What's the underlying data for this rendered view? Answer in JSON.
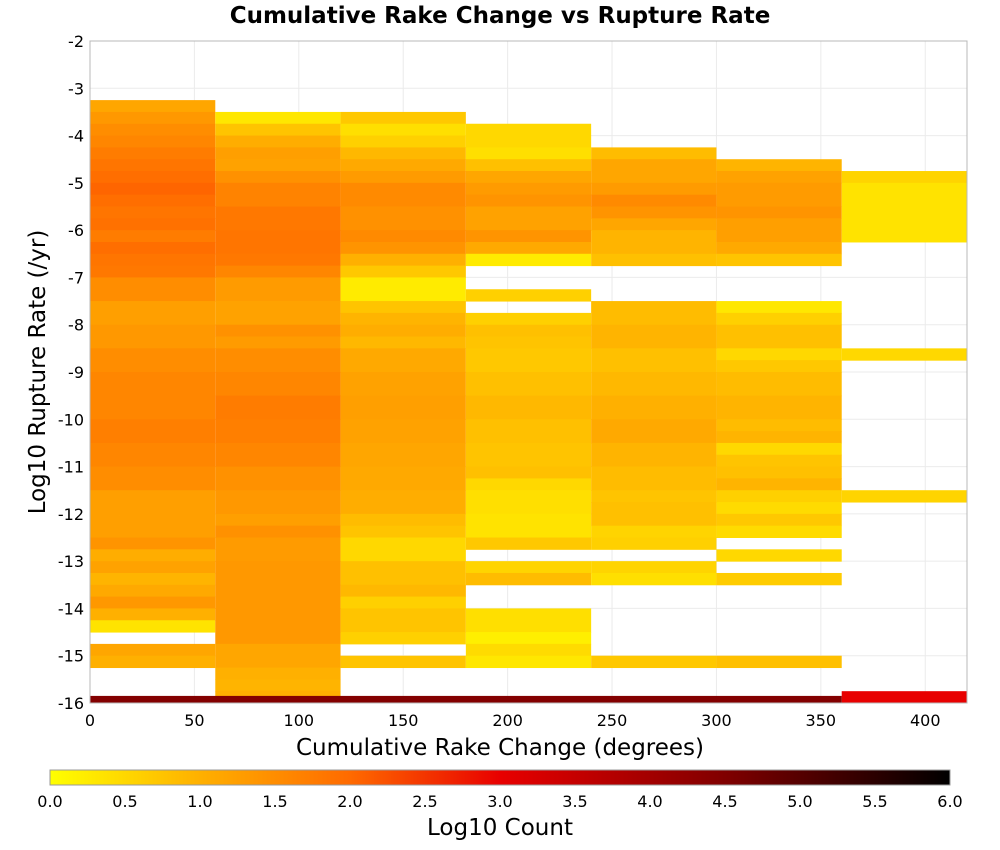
{
  "chart_data": {
    "type": "heatmap",
    "title": "Cumulative Rake Change vs Rupture Rate",
    "xlabel": "Cumulative Rake Change (degrees)",
    "ylabel": "Log10 Rupture Rate (/yr)",
    "xlim": [
      0,
      420
    ],
    "ylim": [
      -16,
      -2
    ],
    "x_ticks": [
      "0",
      "50",
      "100",
      "150",
      "200",
      "250",
      "300",
      "350",
      "400"
    ],
    "y_ticks": [
      "-2",
      "-3",
      "-4",
      "-5",
      "-6",
      "-7",
      "-8",
      "-9",
      "-10",
      "-11",
      "-12",
      "-13",
      "-14",
      "-15",
      "-16"
    ],
    "x_bin_width": 60,
    "y_bin_height": 0.25,
    "colorbar": {
      "label": "Log10 Count",
      "range": [
        0,
        6
      ],
      "ticks": [
        "0.0",
        "0.5",
        "1.0",
        "1.5",
        "2.0",
        "2.5",
        "3.0",
        "3.5",
        "4.0",
        "4.5",
        "5.0",
        "5.5",
        "6.0"
      ],
      "stops": [
        {
          "value": 0.0,
          "color": "#ffff00"
        },
        {
          "value": 1.0,
          "color": "#ffb000"
        },
        {
          "value": 2.0,
          "color": "#ff6a00"
        },
        {
          "value": 3.0,
          "color": "#e80000"
        },
        {
          "value": 4.5,
          "color": "#800000"
        },
        {
          "value": 6.0,
          "color": "#000000"
        }
      ]
    },
    "columns": [
      {
        "x_start": 0,
        "runs": [
          [
            -3.25,
            -3.5,
            1.15
          ],
          [
            -3.5,
            -3.75,
            1.35
          ],
          [
            -3.75,
            -4.0,
            1.5
          ],
          [
            -4.0,
            -4.25,
            1.6
          ],
          [
            -4.25,
            -4.5,
            1.75
          ],
          [
            -4.5,
            -4.75,
            1.85
          ],
          [
            -4.75,
            -5.0,
            1.95
          ],
          [
            -5.0,
            -5.25,
            2.05
          ],
          [
            -5.25,
            -5.5,
            1.95
          ],
          [
            -5.5,
            -5.75,
            1.85
          ],
          [
            -5.75,
            -6.0,
            1.9
          ],
          [
            -6.0,
            -6.25,
            1.75
          ],
          [
            -6.25,
            -6.5,
            1.95
          ],
          [
            -6.5,
            -6.75,
            1.85
          ],
          [
            -6.75,
            -7.0,
            1.8
          ],
          [
            -7.0,
            -7.5,
            1.5
          ],
          [
            -7.5,
            -8.0,
            1.25
          ],
          [
            -8.0,
            -8.5,
            1.35
          ],
          [
            -8.5,
            -9.0,
            1.5
          ],
          [
            -9.0,
            -10.0,
            1.6
          ],
          [
            -10.0,
            -10.5,
            1.7
          ],
          [
            -10.5,
            -11.0,
            1.6
          ],
          [
            -11.0,
            -11.5,
            1.5
          ],
          [
            -11.5,
            -12.5,
            1.25
          ],
          [
            -12.5,
            -12.75,
            1.4
          ],
          [
            -12.75,
            -13.0,
            1.05
          ],
          [
            -13.0,
            -13.25,
            1.2
          ],
          [
            -13.25,
            -13.5,
            0.95
          ],
          [
            -13.5,
            -13.75,
            1.1
          ],
          [
            -13.75,
            -14.0,
            1.35
          ],
          [
            -14.0,
            -14.25,
            1.0
          ],
          [
            -14.25,
            -14.5,
            0.35
          ],
          [
            -14.75,
            -15.0,
            1.15
          ],
          [
            -15.0,
            -15.25,
            1.0
          ]
        ]
      },
      {
        "x_start": 60,
        "runs": [
          [
            -3.5,
            -3.75,
            0.3
          ],
          [
            -3.75,
            -4.0,
            0.75
          ],
          [
            -4.0,
            -4.25,
            1.05
          ],
          [
            -4.25,
            -4.5,
            1.25
          ],
          [
            -4.5,
            -4.75,
            1.2
          ],
          [
            -4.75,
            -5.0,
            1.45
          ],
          [
            -5.0,
            -5.5,
            1.65
          ],
          [
            -5.5,
            -6.0,
            1.8
          ],
          [
            -6.0,
            -6.5,
            1.85
          ],
          [
            -6.5,
            -6.75,
            1.8
          ],
          [
            -6.75,
            -7.0,
            1.6
          ],
          [
            -7.0,
            -7.5,
            1.3
          ],
          [
            -7.5,
            -8.0,
            1.2
          ],
          [
            -8.0,
            -8.25,
            1.45
          ],
          [
            -8.25,
            -8.5,
            1.3
          ],
          [
            -8.5,
            -9.0,
            1.5
          ],
          [
            -9.0,
            -9.5,
            1.6
          ],
          [
            -9.5,
            -10.0,
            1.75
          ],
          [
            -10.0,
            -10.5,
            1.7
          ],
          [
            -10.5,
            -11.0,
            1.6
          ],
          [
            -11.0,
            -11.5,
            1.45
          ],
          [
            -11.5,
            -12.0,
            1.35
          ],
          [
            -12.0,
            -12.25,
            1.25
          ],
          [
            -12.25,
            -12.5,
            1.45
          ],
          [
            -12.5,
            -13.0,
            1.3
          ],
          [
            -13.0,
            -14.0,
            1.35
          ],
          [
            -14.0,
            -14.75,
            1.35
          ],
          [
            -14.75,
            -15.25,
            1.15
          ],
          [
            -15.25,
            -15.5,
            1.0
          ],
          [
            -15.5,
            -15.75,
            0.95
          ],
          [
            -15.75,
            -16.0,
            1.0
          ]
        ]
      },
      {
        "x_start": 120,
        "runs": [
          [
            -3.5,
            -3.75,
            0.7
          ],
          [
            -3.75,
            -4.0,
            0.4
          ],
          [
            -4.0,
            -4.25,
            0.6
          ],
          [
            -4.25,
            -4.5,
            0.9
          ],
          [
            -4.5,
            -4.75,
            1.1
          ],
          [
            -4.75,
            -5.0,
            1.3
          ],
          [
            -5.0,
            -5.5,
            1.55
          ],
          [
            -5.5,
            -6.0,
            1.45
          ],
          [
            -6.0,
            -6.25,
            1.55
          ],
          [
            -6.25,
            -6.5,
            1.4
          ],
          [
            -6.5,
            -6.75,
            1.0
          ],
          [
            -6.75,
            -7.0,
            0.7
          ],
          [
            -7.0,
            -7.5,
            0.25
          ],
          [
            -7.5,
            -7.75,
            0.75
          ],
          [
            -7.75,
            -8.0,
            0.95
          ],
          [
            -8.0,
            -8.25,
            1.05
          ],
          [
            -8.25,
            -8.5,
            0.9
          ],
          [
            -8.5,
            -9.0,
            1.1
          ],
          [
            -9.0,
            -9.5,
            1.2
          ],
          [
            -9.5,
            -10.0,
            1.25
          ],
          [
            -10.0,
            -10.5,
            1.2
          ],
          [
            -10.5,
            -11.0,
            1.15
          ],
          [
            -11.0,
            -11.5,
            1.1
          ],
          [
            -11.5,
            -12.0,
            1.05
          ],
          [
            -12.0,
            -12.25,
            0.85
          ],
          [
            -12.25,
            -12.5,
            0.75
          ],
          [
            -12.5,
            -13.0,
            0.5
          ],
          [
            -13.0,
            -13.5,
            0.8
          ],
          [
            -13.5,
            -13.75,
            0.9
          ],
          [
            -13.75,
            -14.0,
            0.6
          ],
          [
            -14.0,
            -14.5,
            0.75
          ],
          [
            -14.5,
            -14.75,
            0.6
          ],
          [
            -15.0,
            -15.25,
            0.75
          ]
        ]
      },
      {
        "x_start": 180,
        "runs": [
          [
            -3.75,
            -4.25,
            0.5
          ],
          [
            -4.25,
            -4.5,
            0.4
          ],
          [
            -4.5,
            -4.75,
            0.8
          ],
          [
            -4.75,
            -5.0,
            1.15
          ],
          [
            -5.0,
            -5.25,
            1.3
          ],
          [
            -5.25,
            -5.5,
            1.4
          ],
          [
            -5.5,
            -6.0,
            1.2
          ],
          [
            -6.0,
            -6.25,
            1.4
          ],
          [
            -6.25,
            -6.5,
            1.1
          ],
          [
            -6.5,
            -6.75,
            0.25
          ],
          [
            -7.25,
            -7.5,
            0.6
          ],
          [
            -7.75,
            -8.0,
            0.6
          ],
          [
            -8.0,
            -8.25,
            0.8
          ],
          [
            -8.25,
            -8.5,
            0.75
          ],
          [
            -8.5,
            -9.0,
            0.7
          ],
          [
            -9.0,
            -9.5,
            0.8
          ],
          [
            -9.5,
            -10.0,
            0.9
          ],
          [
            -10.0,
            -10.5,
            0.8
          ],
          [
            -10.5,
            -11.0,
            0.75
          ],
          [
            -11.0,
            -11.25,
            0.8
          ],
          [
            -11.25,
            -11.5,
            0.5
          ],
          [
            -11.5,
            -12.0,
            0.4
          ],
          [
            -12.0,
            -12.5,
            0.35
          ],
          [
            -12.5,
            -12.75,
            0.7
          ],
          [
            -13.0,
            -13.25,
            0.55
          ],
          [
            -13.25,
            -13.5,
            0.85
          ],
          [
            -14.0,
            -14.5,
            0.4
          ],
          [
            -14.5,
            -14.75,
            0.2
          ],
          [
            -14.75,
            -15.0,
            0.45
          ],
          [
            -15.0,
            -15.25,
            0.3
          ]
        ]
      },
      {
        "x_start": 240,
        "runs": [
          [
            -4.25,
            -4.5,
            0.85
          ],
          [
            -4.5,
            -5.0,
            1.15
          ],
          [
            -5.0,
            -5.25,
            1.3
          ],
          [
            -5.25,
            -5.5,
            1.55
          ],
          [
            -5.5,
            -5.75,
            1.4
          ],
          [
            -5.75,
            -6.0,
            1.15
          ],
          [
            -6.0,
            -6.5,
            0.95
          ],
          [
            -6.5,
            -6.75,
            0.8
          ],
          [
            -7.5,
            -8.0,
            0.85
          ],
          [
            -8.0,
            -8.5,
            0.95
          ],
          [
            -8.5,
            -9.0,
            0.8
          ],
          [
            -9.0,
            -9.5,
            0.9
          ],
          [
            -9.5,
            -10.0,
            1.0
          ],
          [
            -10.0,
            -10.5,
            1.1
          ],
          [
            -10.5,
            -11.0,
            0.95
          ],
          [
            -11.0,
            -11.5,
            0.85
          ],
          [
            -11.5,
            -11.75,
            0.75
          ],
          [
            -11.75,
            -12.25,
            0.8
          ],
          [
            -12.25,
            -12.5,
            0.55
          ],
          [
            -12.5,
            -12.75,
            0.6
          ],
          [
            -13.0,
            -13.25,
            0.55
          ],
          [
            -13.25,
            -13.5,
            0.4
          ],
          [
            -15.0,
            -15.25,
            0.7
          ]
        ]
      },
      {
        "x_start": 300,
        "runs": [
          [
            -4.5,
            -4.75,
            0.95
          ],
          [
            -4.75,
            -5.0,
            1.2
          ],
          [
            -5.0,
            -5.5,
            1.3
          ],
          [
            -5.5,
            -5.75,
            1.4
          ],
          [
            -5.75,
            -6.25,
            1.25
          ],
          [
            -6.25,
            -6.5,
            1.1
          ],
          [
            -6.5,
            -6.75,
            0.75
          ],
          [
            -7.5,
            -7.75,
            0.3
          ],
          [
            -7.75,
            -8.0,
            0.6
          ],
          [
            -8.0,
            -8.5,
            0.8
          ],
          [
            -8.5,
            -8.75,
            0.5
          ],
          [
            -8.75,
            -9.0,
            0.7
          ],
          [
            -9.0,
            -9.5,
            0.85
          ],
          [
            -9.5,
            -10.0,
            0.95
          ],
          [
            -10.0,
            -10.25,
            0.85
          ],
          [
            -10.25,
            -10.5,
            0.95
          ],
          [
            -10.5,
            -10.75,
            0.5
          ],
          [
            -10.75,
            -11.0,
            0.75
          ],
          [
            -11.0,
            -11.25,
            0.8
          ],
          [
            -11.25,
            -11.5,
            0.95
          ],
          [
            -11.5,
            -11.75,
            0.6
          ],
          [
            -11.75,
            -12.0,
            0.45
          ],
          [
            -12.0,
            -12.25,
            0.7
          ],
          [
            -12.25,
            -12.5,
            0.45
          ],
          [
            -12.75,
            -13.0,
            0.5
          ],
          [
            -13.25,
            -13.5,
            0.65
          ],
          [
            -15.0,
            -15.25,
            0.8
          ]
        ]
      },
      {
        "x_start": 360,
        "runs": [
          [
            -4.75,
            -5.0,
            0.55
          ],
          [
            -5.0,
            -6.25,
            0.35
          ],
          [
            -8.5,
            -8.75,
            0.5
          ],
          [
            -11.5,
            -11.75,
            0.55
          ],
          [
            -15.75,
            -16.0,
            3.0
          ]
        ]
      }
    ],
    "base_strip": {
      "x_range": [
        0,
        360
      ],
      "y_range": [
        -15.85,
        -16.0
      ],
      "value": 4.45
    }
  }
}
